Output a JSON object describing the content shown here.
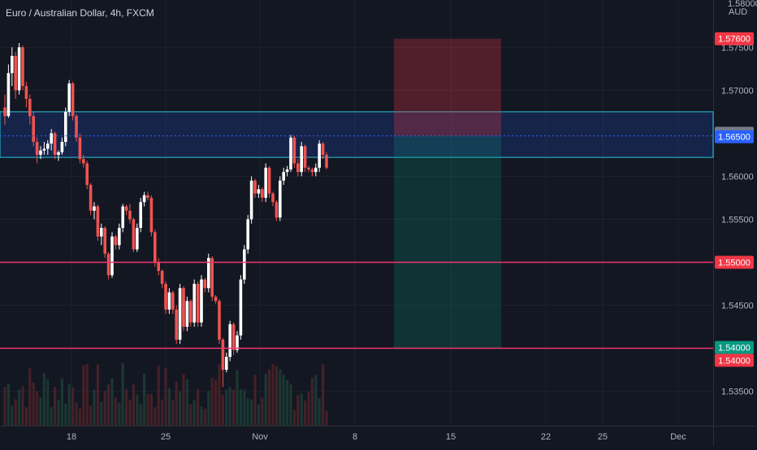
{
  "header": {
    "title": "Euro / Australian Dollar, 4h, FXCM"
  },
  "axis": {
    "currency": "AUD",
    "top_label": "1.58000"
  },
  "colors": {
    "background": "#131722",
    "grid": "#1e222d",
    "up": "#ffffff",
    "down": "#ef5350",
    "support": "#f23672",
    "zone": "#26c6da",
    "current": "#2962ff",
    "stop_zone": "#4a2227",
    "target_zone": "#163436",
    "tag_stop": "#f23645",
    "tag_target": "#089981",
    "tag_gray": "#787b86"
  },
  "chart_data": {
    "type": "candlestick",
    "title": "Euro / Australian Dollar, 4h, FXCM",
    "symbol": "EURAUD",
    "timeframe": "4h",
    "y_axis": {
      "ticks": [
        "1.57500",
        "1.57000",
        "1.56000",
        "1.55500",
        "1.54500",
        "1.53500"
      ],
      "ylim": [
        1.531,
        1.5805
      ]
    },
    "x_axis": {
      "ticks": [
        "18",
        "25",
        "Nov",
        "8",
        "15",
        "22",
        "25",
        "Dec"
      ]
    },
    "price_tags": [
      {
        "label": "1.57600",
        "value": 1.576,
        "kind": "stop"
      },
      {
        "label": "1.56500",
        "value": 1.565,
        "kind": "gray"
      },
      {
        "label": "1.56500",
        "value": 1.5646,
        "kind": "current"
      },
      {
        "label": "1.55000",
        "value": 1.55,
        "kind": "stop"
      },
      {
        "label": "1.54000",
        "value": 1.5401,
        "kind": "target"
      },
      {
        "label": "1.54000",
        "value": 1.5386,
        "kind": "stop"
      }
    ],
    "horizontal_lines": [
      {
        "value": 1.55,
        "style": "solid",
        "color": "support"
      },
      {
        "value": 1.54,
        "style": "solid",
        "color": "support"
      },
      {
        "value": 1.5647,
        "style": "dotted",
        "color": "current"
      }
    ],
    "zone": {
      "top": 1.5675,
      "bottom": 1.5622
    },
    "position": {
      "entry": 1.5647,
      "stop": 1.576,
      "target": 1.54
    },
    "candles": [
      [
        1.568,
        1.5695,
        1.566,
        1.567
      ],
      [
        1.567,
        1.573,
        1.5668,
        1.572
      ],
      [
        1.572,
        1.575,
        1.5705,
        1.574
      ],
      [
        1.574,
        1.5745,
        1.569,
        1.57
      ],
      [
        1.57,
        1.5755,
        1.5695,
        1.575
      ],
      [
        1.575,
        1.5752,
        1.57,
        1.5705
      ],
      [
        1.5705,
        1.571,
        1.568,
        1.569
      ],
      [
        1.569,
        1.5695,
        1.566,
        1.567
      ],
      [
        1.567,
        1.5675,
        1.5635,
        1.564
      ],
      [
        1.564,
        1.5645,
        1.5615,
        1.5625
      ],
      [
        1.5625,
        1.5635,
        1.562,
        1.563
      ],
      [
        1.563,
        1.564,
        1.5625,
        1.5632
      ],
      [
        1.5632,
        1.5642,
        1.5625,
        1.5638
      ],
      [
        1.5638,
        1.5655,
        1.563,
        1.565
      ],
      [
        1.565,
        1.5652,
        1.562,
        1.5625
      ],
      [
        1.5625,
        1.563,
        1.5618,
        1.5628
      ],
      [
        1.5628,
        1.5645,
        1.5625,
        1.564
      ],
      [
        1.564,
        1.568,
        1.5635,
        1.5675
      ],
      [
        1.5675,
        1.5712,
        1.567,
        1.5708
      ],
      [
        1.5708,
        1.571,
        1.5665,
        1.567
      ],
      [
        1.567,
        1.5672,
        1.564,
        1.5645
      ],
      [
        1.5645,
        1.565,
        1.5615,
        1.562
      ],
      [
        1.562,
        1.5625,
        1.561,
        1.5615
      ],
      [
        1.5615,
        1.5618,
        1.5585,
        1.559
      ],
      [
        1.559,
        1.5592,
        1.5555,
        1.556
      ],
      [
        1.556,
        1.557,
        1.555,
        1.5565
      ],
      [
        1.5565,
        1.5567,
        1.5525,
        1.553
      ],
      [
        1.553,
        1.5545,
        1.552,
        1.554
      ],
      [
        1.554,
        1.5542,
        1.5505,
        1.551
      ],
      [
        1.551,
        1.5512,
        1.548,
        1.5485
      ],
      [
        1.5485,
        1.5535,
        1.5482,
        1.553
      ],
      [
        1.553,
        1.5532,
        1.5515,
        1.552
      ],
      [
        1.552,
        1.5545,
        1.5515,
        1.554
      ],
      [
        1.554,
        1.5568,
        1.5535,
        1.5565
      ],
      [
        1.5565,
        1.5567,
        1.5555,
        1.556
      ],
      [
        1.556,
        1.5568,
        1.5545,
        1.555
      ],
      [
        1.555,
        1.5552,
        1.5512,
        1.5515
      ],
      [
        1.5515,
        1.5545,
        1.5512,
        1.554
      ],
      [
        1.554,
        1.5575,
        1.5535,
        1.557
      ],
      [
        1.557,
        1.5582,
        1.5565,
        1.5578
      ],
      [
        1.5578,
        1.5582,
        1.5572,
        1.5575
      ],
      [
        1.5575,
        1.5578,
        1.553,
        1.5535
      ],
      [
        1.5535,
        1.5538,
        1.5495,
        1.55
      ],
      [
        1.55,
        1.5505,
        1.5485,
        1.549
      ],
      [
        1.549,
        1.5492,
        1.547,
        1.5475
      ],
      [
        1.5475,
        1.5478,
        1.544,
        1.5445
      ],
      [
        1.5445,
        1.547,
        1.544,
        1.5465
      ],
      [
        1.5465,
        1.5467,
        1.544,
        1.5445
      ],
      [
        1.5445,
        1.545,
        1.5405,
        1.541
      ],
      [
        1.541,
        1.5475,
        1.5405,
        1.547
      ],
      [
        1.547,
        1.5472,
        1.542,
        1.5425
      ],
      [
        1.5425,
        1.546,
        1.542,
        1.5455
      ],
      [
        1.5455,
        1.5457,
        1.5425,
        1.543
      ],
      [
        1.543,
        1.548,
        1.5425,
        1.5475
      ],
      [
        1.5475,
        1.5478,
        1.5425,
        1.543
      ],
      [
        1.543,
        1.5485,
        1.5425,
        1.548
      ],
      [
        1.548,
        1.5482,
        1.5465,
        1.547
      ],
      [
        1.547,
        1.551,
        1.5465,
        1.5505
      ],
      [
        1.5505,
        1.5507,
        1.5455,
        1.546
      ],
      [
        1.546,
        1.5462,
        1.5452,
        1.5455
      ],
      [
        1.5455,
        1.5457,
        1.5405,
        1.541
      ],
      [
        1.541,
        1.5412,
        1.5355,
        1.5375
      ],
      [
        1.5375,
        1.5395,
        1.5372,
        1.539
      ],
      [
        1.539,
        1.5432,
        1.5385,
        1.5428
      ],
      [
        1.5428,
        1.543,
        1.5392,
        1.5398
      ],
      [
        1.5398,
        1.542,
        1.5395,
        1.5415
      ],
      [
        1.5415,
        1.5485,
        1.541,
        1.548
      ],
      [
        1.548,
        1.552,
        1.5475,
        1.5515
      ],
      [
        1.5515,
        1.5555,
        1.551,
        1.555
      ],
      [
        1.555,
        1.56,
        1.5545,
        1.5595
      ],
      [
        1.5595,
        1.5597,
        1.5575,
        1.558
      ],
      [
        1.558,
        1.559,
        1.5575,
        1.5585
      ],
      [
        1.5585,
        1.5587,
        1.557,
        1.5575
      ],
      [
        1.5575,
        1.5615,
        1.557,
        1.561
      ],
      [
        1.561,
        1.5612,
        1.5575,
        1.558
      ],
      [
        1.558,
        1.5582,
        1.5565,
        1.557
      ],
      [
        1.557,
        1.5572,
        1.5548,
        1.5552
      ],
      [
        1.5552,
        1.56,
        1.5548,
        1.5595
      ],
      [
        1.5595,
        1.561,
        1.559,
        1.5605
      ],
      [
        1.5605,
        1.5612,
        1.56,
        1.5608
      ],
      [
        1.5608,
        1.5648,
        1.5605,
        1.5645
      ],
      [
        1.5645,
        1.5647,
        1.561,
        1.5615
      ],
      [
        1.5615,
        1.562,
        1.56,
        1.5605
      ],
      [
        1.5605,
        1.564,
        1.56,
        1.5635
      ],
      [
        1.5635,
        1.5637,
        1.5605,
        1.561
      ],
      [
        1.561,
        1.5612,
        1.5605,
        1.5608
      ],
      [
        1.5608,
        1.561,
        1.56,
        1.5605
      ],
      [
        1.5605,
        1.5615,
        1.56,
        1.561
      ],
      [
        1.561,
        1.5642,
        1.5605,
        1.5638
      ],
      [
        1.5638,
        1.564,
        1.562,
        1.5625
      ],
      [
        1.5625,
        1.5628,
        1.5608,
        1.561
      ]
    ]
  }
}
